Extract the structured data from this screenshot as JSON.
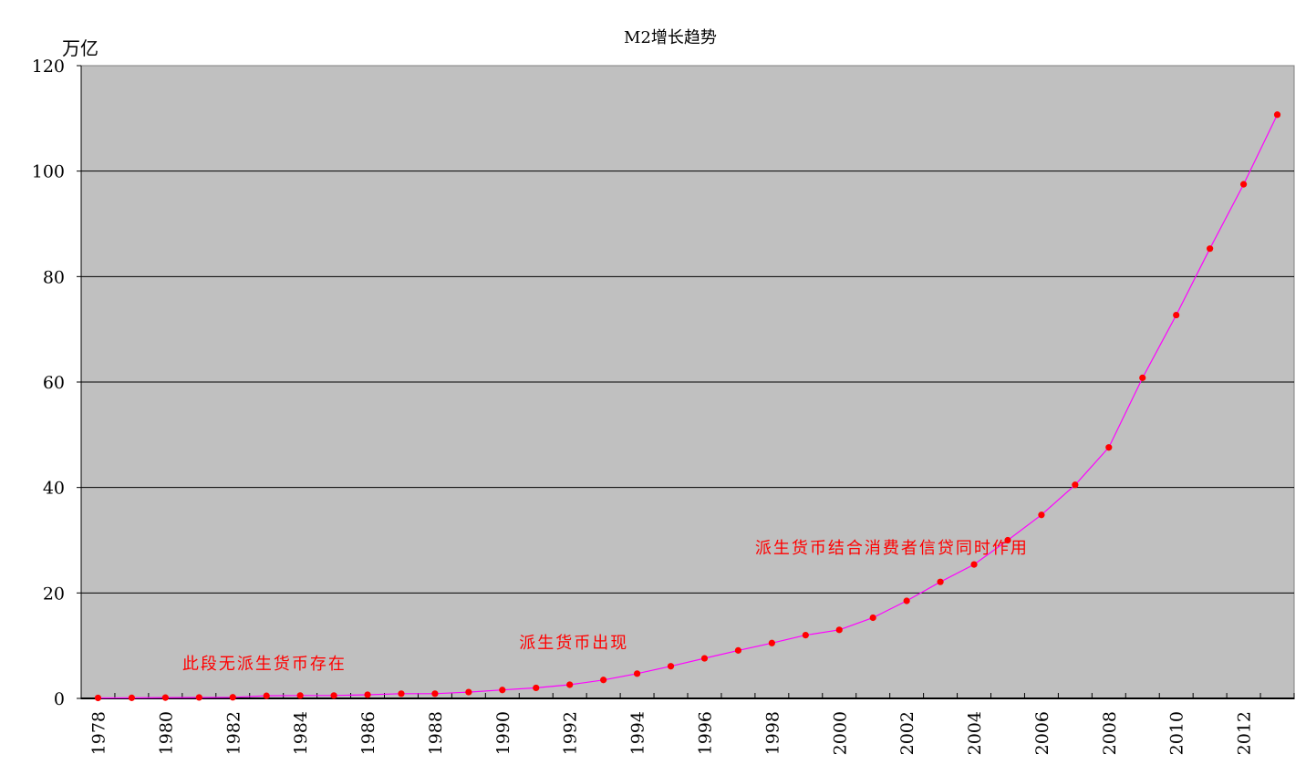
{
  "chart_data": {
    "type": "line",
    "title": "M2增长趋势",
    "ylabel": "万亿",
    "xlabel": "",
    "ylim": [
      0,
      120
    ],
    "yticks": [
      0,
      20,
      40,
      60,
      80,
      100,
      120
    ],
    "grid": true,
    "x": [
      1978,
      1979,
      1980,
      1981,
      1982,
      1983,
      1984,
      1985,
      1986,
      1987,
      1988,
      1989,
      1990,
      1991,
      1992,
      1993,
      1994,
      1995,
      1996,
      1997,
      1998,
      1999,
      2000,
      2001,
      2002,
      2003,
      2004,
      2005,
      2006,
      2007,
      2008,
      2009,
      2010,
      2011,
      2012,
      2013
    ],
    "values": [
      0.09,
      0.11,
      0.15,
      0.18,
      0.21,
      0.5,
      0.55,
      0.55,
      0.7,
      0.9,
      0.9,
      1.2,
      1.6,
      2.0,
      2.6,
      3.5,
      4.7,
      6.1,
      7.6,
      9.1,
      10.5,
      12.0,
      13.0,
      15.3,
      18.5,
      22.1,
      25.4,
      30.0,
      34.8,
      40.5,
      47.6,
      60.8,
      72.7,
      85.3,
      97.5,
      110.7
    ],
    "annotations": [
      {
        "text": "此段无派生货币存在",
        "year": 1981,
        "value": 5.5
      },
      {
        "text": "派生货币出现",
        "year": 1991,
        "value": 9.5
      },
      {
        "text": "派生货币结合消费者信贷同时作用",
        "year": 1998,
        "value": 27.5
      }
    ],
    "colors": {
      "plot_bg": "#c0c0c0",
      "line": "#ff00ff",
      "marker": "#ff0000",
      "annotation": "#ff0000"
    }
  }
}
